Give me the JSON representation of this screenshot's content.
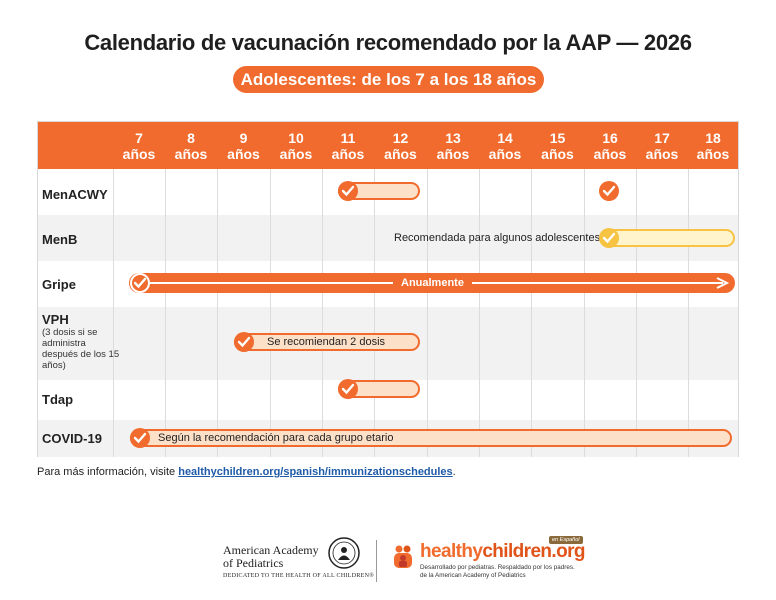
{
  "title": "Calendario de vacunación recomendado por la AAP — 2026",
  "subtitle": "Adolescentes: de los 7 a los 18 años",
  "ages": [
    {
      "num": "7",
      "unit": "años"
    },
    {
      "num": "8",
      "unit": "años"
    },
    {
      "num": "9",
      "unit": "años"
    },
    {
      "num": "10",
      "unit": "años"
    },
    {
      "num": "11",
      "unit": "años"
    },
    {
      "num": "12",
      "unit": "años"
    },
    {
      "num": "13",
      "unit": "años"
    },
    {
      "num": "14",
      "unit": "años"
    },
    {
      "num": "15",
      "unit": "años"
    },
    {
      "num": "16",
      "unit": "años"
    },
    {
      "num": "17",
      "unit": "años"
    },
    {
      "num": "18",
      "unit": "años"
    }
  ],
  "vaccines": [
    {
      "name": "MenACWY",
      "note": "",
      "bar_text": ""
    },
    {
      "name": "MenB",
      "note": "",
      "bar_text": "Recomendada para algunos adolescentes"
    },
    {
      "name": "Gripe",
      "note": "",
      "bar_text": "Anualmente"
    },
    {
      "name": "VPH",
      "note": "(3 dosis si se administra después de los 15 años)",
      "bar_text": "Se recomiendan 2 dosis"
    },
    {
      "name": "Tdap",
      "note": "",
      "bar_text": ""
    },
    {
      "name": "COVID-19",
      "note": "",
      "bar_text": "Según la recomendación para cada grupo etario"
    }
  ],
  "footer": {
    "prefix": "Para más información, visite ",
    "link": "healthychildren.org/spanish/immunizationschedules",
    "suffix": "."
  },
  "aap_logo": {
    "line1": "American Academy",
    "line2": "of Pediatrics",
    "line3": "DEDICATED TO THE HEALTH OF ALL CHILDREN®"
  },
  "hc_logo": {
    "part1": "healthy",
    "part2": "children.org",
    "badge": "en Español",
    "tag1": "Desarrollado por pediatras. Respaldado por los padres.",
    "tag2": "de la American Academy of Pediatrics"
  },
  "colors": {
    "accent": "#f06b2d",
    "light": "#fde0c8",
    "menb": "#f6c342",
    "link": "#1f5ba8"
  }
}
